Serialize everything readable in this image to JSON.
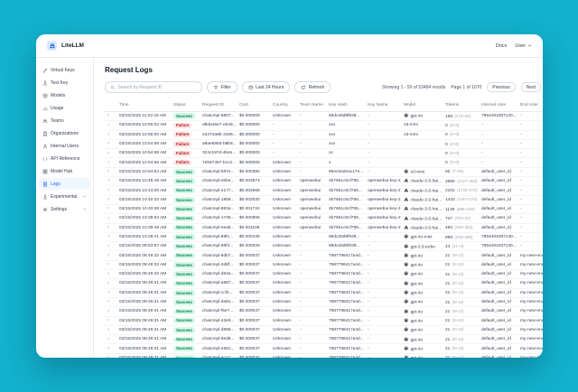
{
  "colors": {
    "background": "#12b1ce",
    "accent": "#2563eb",
    "success_text": "#047857",
    "success_bg": "#d1fae5",
    "failure_text": "#b91c1c",
    "failure_bg": "#fee2e2"
  },
  "header": {
    "brand": "LiteLLM",
    "docs_label": "Docs",
    "user_label": "User"
  },
  "sidebar": {
    "items": [
      {
        "label": "Virtual Keys",
        "icon": "key",
        "selected": false,
        "chevron": false
      },
      {
        "label": "Test Key",
        "icon": "flask",
        "selected": false,
        "chevron": false
      },
      {
        "label": "Models",
        "icon": "box",
        "selected": false,
        "chevron": false
      },
      {
        "label": "Usage",
        "icon": "chart",
        "selected": false,
        "chevron": false
      },
      {
        "label": "Teams",
        "icon": "people",
        "selected": false,
        "chevron": false
      },
      {
        "label": "Organizations",
        "icon": "building",
        "selected": false,
        "chevron": false
      },
      {
        "label": "Internal Users",
        "icon": "person",
        "selected": false,
        "chevron": false
      },
      {
        "label": "API Reference",
        "icon": "code",
        "selected": false,
        "chevron": false
      },
      {
        "label": "Model Hub",
        "icon": "grid",
        "selected": false,
        "chevron": false
      },
      {
        "label": "Logs",
        "icon": "logs",
        "selected": true,
        "chevron": false
      },
      {
        "label": "Experimental",
        "icon": "flask",
        "selected": false,
        "chevron": true
      },
      {
        "label": "Settings",
        "icon": "gear",
        "selected": false,
        "chevron": true
      }
    ]
  },
  "page": {
    "title": "Request Logs"
  },
  "toolbar": {
    "search_placeholder": "Search by Request ID",
    "filter_label": "Filter",
    "time_range_label": "Last 24 Hours",
    "refresh_label": "Refresh"
  },
  "pagination": {
    "showing": "Showing 1 - 50 of 53484 results",
    "page": "Page 1 of 1070",
    "previous_label": "Previous",
    "next_label": "Next"
  },
  "table": {
    "columns": [
      "",
      "Time",
      "Status",
      "Request ID",
      "Cost",
      "Country",
      "Team Name",
      "Key Hash",
      "Key Name",
      "Model",
      "Tokens",
      "Internal User",
      "End User"
    ],
    "rows": [
      {
        "time": "03/15/2025 11:02:18 AM",
        "status": "Success",
        "request_id": "chatcmpl-8807...",
        "cost": "$0.000000",
        "country": "Unknown",
        "team": "-",
        "key_hash": "88dc28d9f838...",
        "key_name": "-",
        "model": "gpt-4o",
        "provider": "openai",
        "tokens": "198",
        "tokens_detail": "(173+25)",
        "internal_user": "7954481087140...",
        "end_user": "-"
      },
      {
        "time": "03/15/2025 10:55:02 AM",
        "status": "Failure",
        "request_id": "d8da45e7-eb48...",
        "cost": "$0.000000",
        "country": "-",
        "team": "-",
        "key_hash": "xxx",
        "key_name": "-",
        "model": "o3-mini",
        "provider": "none",
        "tokens": "0",
        "tokens_detail": "(0+0)",
        "internal_user": "-",
        "end_user": "-"
      },
      {
        "time": "03/15/2025 10:55:00 AM",
        "status": "Failure",
        "request_id": "43474a9b-3188...",
        "cost": "$0.000000",
        "country": "-",
        "team": "-",
        "key_hash": "xxx",
        "key_name": "-",
        "model": "o3-mini",
        "provider": "none",
        "tokens": "0",
        "tokens_detail": "(0+0)",
        "internal_user": "-",
        "end_user": "-"
      },
      {
        "time": "03/15/2025 10:54:59 AM",
        "status": "Failure",
        "request_id": "a9ae685d-b8b8...",
        "cost": "$0.000000",
        "country": "-",
        "team": "-",
        "key_hash": "xxx",
        "key_name": "-",
        "model": "",
        "provider": "none",
        "tokens": "0",
        "tokens_detail": "(0+0)",
        "internal_user": "-",
        "end_user": "-"
      },
      {
        "time": "03/15/2025 10:54:59 AM",
        "status": "Failure",
        "request_id": "324c187d-4b4e...",
        "cost": "$0.000000",
        "country": "-",
        "team": "-",
        "key_hash": "xx",
        "key_name": "-",
        "model": "",
        "provider": "none",
        "tokens": "0",
        "tokens_detail": "(0+0)",
        "internal_user": "-",
        "end_user": "-"
      },
      {
        "time": "03/15/2025 10:54:58 AM",
        "status": "Failure",
        "request_id": "7eb67387-bcc2...",
        "cost": "$0.000000",
        "country": "Unknown",
        "team": "-",
        "key_hash": "x",
        "key_name": "-",
        "model": "",
        "provider": "none",
        "tokens": "0",
        "tokens_detail": "(0+0)",
        "internal_user": "-",
        "end_user": "-"
      },
      {
        "time": "03/15/2025 10:54:54 AM",
        "status": "Success",
        "request_id": "chatcmpl-b87e...",
        "cost": "$0.000382",
        "country": "Unknown",
        "team": "-",
        "key_hash": "86ec5a2eac17e...",
        "key_name": "-",
        "model": "o3-mini",
        "provider": "openai",
        "tokens": "92",
        "tokens_detail": "(7+85)",
        "internal_user": "default_user_id",
        "end_user": "-"
      },
      {
        "time": "03/15/2025 10:45:49 AM",
        "status": "Success",
        "request_id": "chatcmpl-ebbe...",
        "cost": "$0.003574",
        "country": "Unknown",
        "team": "openwebui",
        "key_hash": "4b7651c6cf795...",
        "key_name": "openwebui-key-2",
        "model": "claude-3-5-hai...",
        "provider": "anthropic",
        "tokens": "2580",
        "tokens_detail": "(2127+453)",
        "internal_user": "default_user_id",
        "end_user": "-"
      },
      {
        "time": "03/15/2025 10:43:00 AM",
        "status": "Success",
        "request_id": "chatcmpl-4177...",
        "cost": "$0.002668",
        "country": "Unknown",
        "team": "openwebui",
        "key_hash": "4b7651c6cf795...",
        "key_name": "openwebui-key-2",
        "model": "claude-3-5-hai...",
        "provider": "anthropic",
        "tokens": "2102",
        "tokens_detail": "(1732+370)",
        "internal_user": "default_user_id",
        "end_user": "-"
      },
      {
        "time": "03/15/2025 10:40:33 AM",
        "status": "Success",
        "request_id": "chatcmpl-1858...",
        "cost": "$0.002030",
        "country": "Unknown",
        "team": "openwebui",
        "key_hash": "4b7651c6cf795...",
        "key_name": "openwebui-key-2",
        "model": "claude-3-5-hai...",
        "provider": "anthropic",
        "tokens": "1433",
        "tokens_detail": "(1157+276)",
        "internal_user": "default_user_id",
        "end_user": "-"
      },
      {
        "time": "03/15/2025 10:40:08 AM",
        "status": "Success",
        "request_id": "chatcmpl-883a...",
        "cost": "$0.001724",
        "country": "Unknown",
        "team": "openwebui",
        "key_hash": "4b7651c6cf795...",
        "key_name": "openwebui-key-2",
        "model": "claude-3-5-hai...",
        "provider": "anthropic",
        "tokens": "1139",
        "tokens_detail": "(885+254)",
        "internal_user": "default_user_id",
        "end_user": "-"
      },
      {
        "time": "03/15/2025 10:39:53 AM",
        "status": "Success",
        "request_id": "chatcmpl-1748...",
        "cost": "$0.000855",
        "country": "Unknown",
        "team": "openwebui",
        "key_hash": "4b7651c6cf795...",
        "key_name": "openwebui-key-2",
        "model": "claude-3-5-hai...",
        "provider": "anthropic",
        "tokens": "727",
        "tokens_detail": "(704+23)",
        "internal_user": "default_user_id",
        "end_user": "-"
      },
      {
        "time": "03/15/2025 10:39:46 AM",
        "status": "Success",
        "request_id": "chatcmpl-eea6...",
        "cost": "$0.001106",
        "country": "Unknown",
        "team": "openwebui",
        "key_hash": "4b7651c6cf795...",
        "key_name": "openwebui-key-2",
        "model": "claude-3-5-hai...",
        "provider": "anthropic",
        "tokens": "482",
        "tokens_detail": "(180+302)",
        "internal_user": "default_user_id",
        "end_user": "-"
      },
      {
        "time": "03/15/2025 10:38:41 AM",
        "status": "Success",
        "request_id": "chatcmpl-88f1...",
        "cost": "$0.000445",
        "country": "Unknown",
        "team": "-",
        "key_hash": "88dc28d9f838...",
        "key_name": "-",
        "model": "gpt-4o-mini",
        "provider": "openai",
        "tokens": "899",
        "tokens_detail": "(209+690)",
        "internal_user": "7954481087140...",
        "end_user": "-"
      },
      {
        "time": "03/15/2025 09:53:57 AM",
        "status": "Success",
        "request_id": "chatcmpl-88f3...",
        "cost": "$0.000025",
        "country": "Unknown",
        "team": "-",
        "key_hash": "88dc28d9f838...",
        "key_name": "-",
        "model": "gpt-3.5-turbo",
        "provider": "openai",
        "tokens": "44",
        "tokens_detail": "(41+3)",
        "internal_user": "7954481087140...",
        "end_user": "-"
      },
      {
        "time": "03/15/2025 08:49:32 AM",
        "status": "Success",
        "request_id": "chatcmpl-6db7...",
        "cost": "$0.000037",
        "country": "Unknown",
        "team": "-",
        "key_hash": "7987798417a4d...",
        "key_name": "-",
        "model": "gpt-4o",
        "provider": "openai",
        "tokens": "21",
        "tokens_detail": "(9+12)",
        "internal_user": "default_user_id",
        "end_user": "my-new-end-user-7"
      },
      {
        "time": "03/15/2025 08:49:32 AM",
        "status": "Success",
        "request_id": "chatcmpl-2d8f...",
        "cost": "$0.000037",
        "country": "Unknown",
        "team": "-",
        "key_hash": "7987798417a4d...",
        "key_name": "-",
        "model": "gpt-4o",
        "provider": "openai",
        "tokens": "21",
        "tokens_detail": "(9+12)",
        "internal_user": "default_user_id",
        "end_user": "my-new-end-user-7"
      },
      {
        "time": "03/15/2025 08:49:32 AM",
        "status": "Success",
        "request_id": "chatcmpl-d52a...",
        "cost": "$0.000037",
        "country": "Unknown",
        "team": "-",
        "key_hash": "7987798417a4d...",
        "key_name": "-",
        "model": "gpt-4o",
        "provider": "openai",
        "tokens": "21",
        "tokens_detail": "(9+12)",
        "internal_user": "default_user_id",
        "end_user": "my-new-end-user-7"
      },
      {
        "time": "03/15/2025 08:49:31 AM",
        "status": "Success",
        "request_id": "chatcmpl-a887...",
        "cost": "$0.000037",
        "country": "Unknown",
        "team": "-",
        "key_hash": "7987798417a4d...",
        "key_name": "-",
        "model": "gpt-4o",
        "provider": "openai",
        "tokens": "21",
        "tokens_detail": "(9+12)",
        "internal_user": "default_user_id",
        "end_user": "my-new-end-user-7"
      },
      {
        "time": "03/15/2025 08:49:31 AM",
        "status": "Success",
        "request_id": "chatcmpl-ccf2...",
        "cost": "$0.000037",
        "country": "Unknown",
        "team": "-",
        "key_hash": "7987798417a4d...",
        "key_name": "-",
        "model": "gpt-4o",
        "provider": "openai",
        "tokens": "21",
        "tokens_detail": "(9+12)",
        "internal_user": "default_user_id",
        "end_user": "my-new-end-user-7"
      },
      {
        "time": "03/15/2025 08:49:31 AM",
        "status": "Success",
        "request_id": "chatcmpl-da81...",
        "cost": "$0.000037",
        "country": "Unknown",
        "team": "-",
        "key_hash": "7987798417a4d...",
        "key_name": "-",
        "model": "gpt-4o",
        "provider": "openai",
        "tokens": "21",
        "tokens_detail": "(9+12)",
        "internal_user": "default_user_id",
        "end_user": "my-new-end-user-7"
      },
      {
        "time": "03/15/2025 08:49:31 AM",
        "status": "Success",
        "request_id": "chatcmpl-f5e7...",
        "cost": "$0.000037",
        "country": "Unknown",
        "team": "-",
        "key_hash": "7987798417a4d...",
        "key_name": "-",
        "model": "gpt-4o",
        "provider": "openai",
        "tokens": "21",
        "tokens_detail": "(9+12)",
        "internal_user": "default_user_id",
        "end_user": "my-new-end-user-7"
      },
      {
        "time": "03/15/2025 08:49:31 AM",
        "status": "Success",
        "request_id": "chatcmpl-43e9...",
        "cost": "$0.000037",
        "country": "Unknown",
        "team": "-",
        "key_hash": "7987798417a4d...",
        "key_name": "-",
        "model": "gpt-4o",
        "provider": "openai",
        "tokens": "21",
        "tokens_detail": "(9+12)",
        "internal_user": "default_user_id",
        "end_user": "my-new-end-user-7"
      },
      {
        "time": "03/15/2025 08:49:31 AM",
        "status": "Success",
        "request_id": "chatcmpl-d865...",
        "cost": "$0.000037",
        "country": "Unknown",
        "team": "-",
        "key_hash": "7987798417a4d...",
        "key_name": "-",
        "model": "gpt-4o",
        "provider": "openai",
        "tokens": "21",
        "tokens_detail": "(9+12)",
        "internal_user": "default_user_id",
        "end_user": "my-new-end-user-7"
      },
      {
        "time": "03/15/2025 08:49:31 AM",
        "status": "Success",
        "request_id": "chatcmpl-6ed8...",
        "cost": "$0.000037",
        "country": "Unknown",
        "team": "-",
        "key_hash": "7987798417a4d...",
        "key_name": "-",
        "model": "gpt-4o",
        "provider": "openai",
        "tokens": "21",
        "tokens_detail": "(9+12)",
        "internal_user": "default_user_id",
        "end_user": "my-new-end-user-7"
      },
      {
        "time": "03/15/2025 08:49:31 AM",
        "status": "Success",
        "request_id": "chatcmpl-e891...",
        "cost": "$0.000037",
        "country": "Unknown",
        "team": "-",
        "key_hash": "7987798417a4d...",
        "key_name": "-",
        "model": "gpt-4o",
        "provider": "openai",
        "tokens": "21",
        "tokens_detail": "(9+12)",
        "internal_user": "default_user_id",
        "end_user": "my-new-end-user-7"
      },
      {
        "time": "03/15/2025 08:49:31 AM",
        "status": "Success",
        "request_id": "chatcmpl-4cc7...",
        "cost": "$0.000037",
        "country": "Unknown",
        "team": "-",
        "key_hash": "7987798417a4d...",
        "key_name": "-",
        "model": "gpt-4o",
        "provider": "openai",
        "tokens": "21",
        "tokens_detail": "(9+12)",
        "internal_user": "default_user_id",
        "end_user": "my-new-end-user-7"
      },
      {
        "time": "03/15/2025 08:49:30 AM",
        "status": "Success",
        "request_id": "chatcmpl-e317...",
        "cost": "$0.000037",
        "country": "Unknown",
        "team": "-",
        "key_hash": "7987798417a4d...",
        "key_name": "-",
        "model": "gpt-4o",
        "provider": "openai",
        "tokens": "21",
        "tokens_detail": "(9+12)",
        "internal_user": "default_user_id",
        "end_user": "my-new-end-user-7"
      }
    ]
  }
}
